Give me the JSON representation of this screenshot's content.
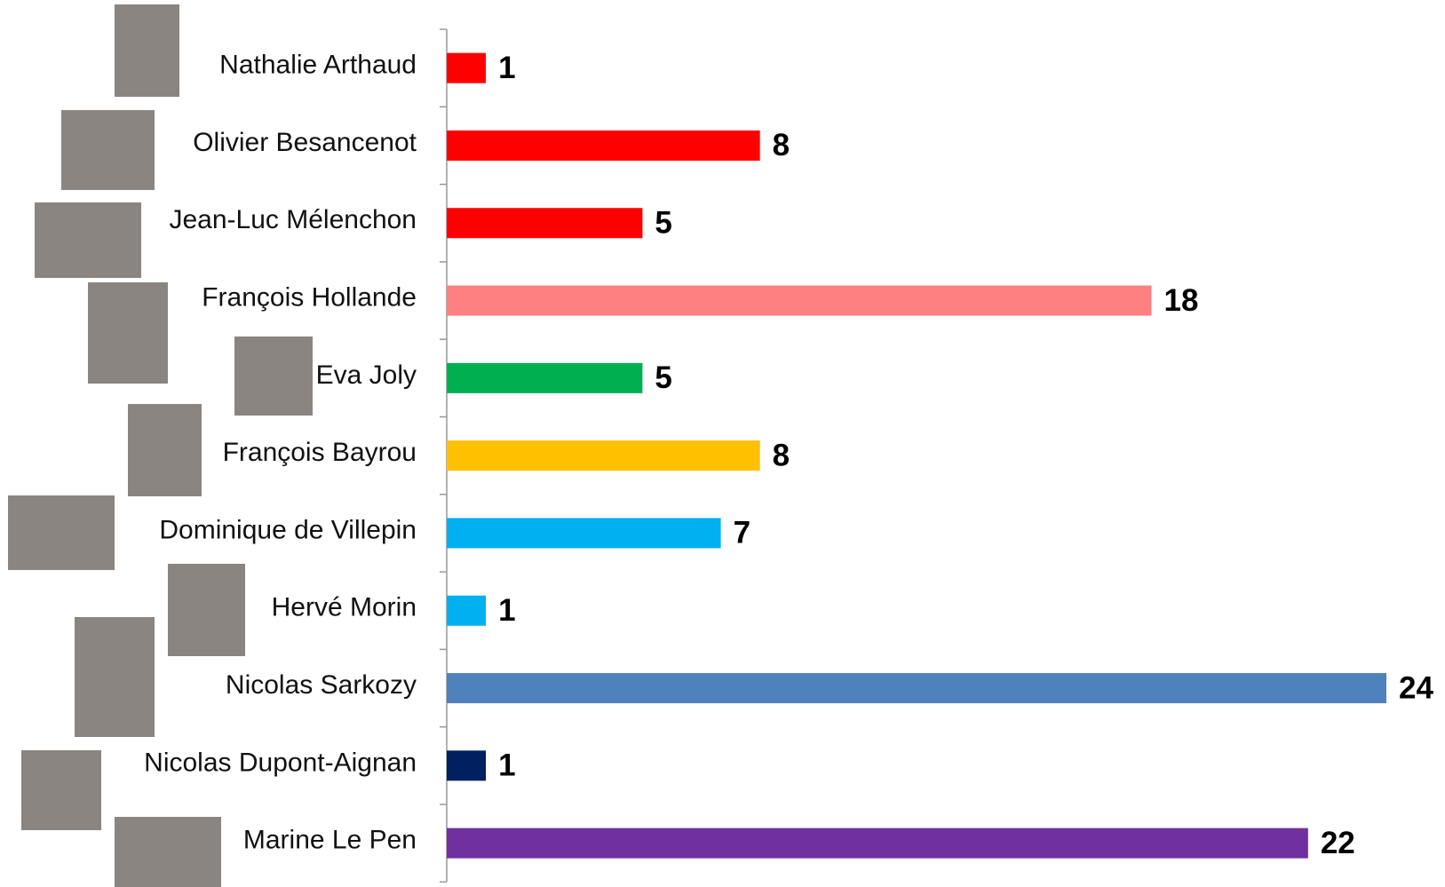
{
  "chart_data": {
    "type": "barh",
    "categories": [
      "Nathalie Arthaud",
      "Olivier Besancenot",
      "Jean-Luc Mélenchon",
      "François Hollande",
      "Eva Joly",
      "François Bayrou",
      "Dominique de Villepin",
      "Hervé Morin",
      "Nicolas Sarkozy",
      "Nicolas Dupont-Aignan",
      "Marine Le Pen"
    ],
    "values": [
      1,
      8,
      5,
      18,
      5,
      8,
      7,
      1,
      24,
      1,
      22
    ],
    "colors": [
      "#ff0000",
      "#ff0000",
      "#ff0000",
      "#ff8080",
      "#00b050",
      "#ffc000",
      "#00b0f0",
      "#00b0f0",
      "#4f81bd",
      "#002060",
      "#7030a0"
    ]
  }
}
